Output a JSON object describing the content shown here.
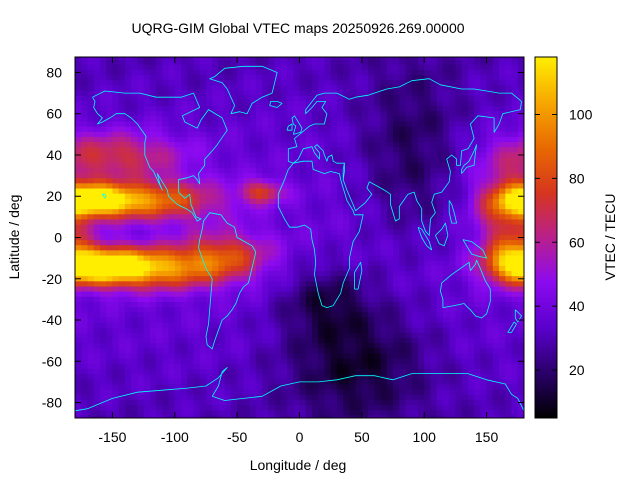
{
  "chart_data": {
    "type": "heatmap",
    "title": "UQRG-GIM Global VTEC maps 20250926.269.00000",
    "xlabel": "Longitude / deg",
    "ylabel": "Latitude / deg",
    "colorbar_label": "VTEC / TECU",
    "xlim": [
      -180,
      180
    ],
    "ylim": [
      -87.5,
      87.5
    ],
    "x_ticks": [
      -150,
      -100,
      -50,
      0,
      50,
      100,
      150
    ],
    "y_ticks": [
      -80,
      -60,
      -40,
      -20,
      0,
      20,
      40,
      60,
      80
    ],
    "colorbar_range": [
      5,
      118
    ],
    "colorbar_ticks": [
      20,
      40,
      60,
      80,
      100
    ],
    "colormap": [
      "#000000",
      "#2a006a",
      "#5a00cc",
      "#8c0af0",
      "#b9208c",
      "#d6361e",
      "#e86a00",
      "#f7a800",
      "#ffee00"
    ],
    "coastline_color": "#00ffff",
    "grid_resolution_deg": [
      5,
      2.5
    ],
    "field_features": [
      {
        "lon": -165,
        "lat": 18,
        "value": 115,
        "sx": 22,
        "sy": 5
      },
      {
        "lon": -160,
        "lat": -14,
        "value": 115,
        "sx": 28,
        "sy": 6
      },
      {
        "lon": -115,
        "lat": 18,
        "value": 80,
        "sx": 35,
        "sy": 7
      },
      {
        "lon": -110,
        "lat": -15,
        "value": 82,
        "sx": 38,
        "sy": 7
      },
      {
        "lon": -60,
        "lat": -8,
        "value": 65,
        "sx": 25,
        "sy": 8
      },
      {
        "lon": -30,
        "lat": 22,
        "value": 68,
        "sx": 12,
        "sy": 4
      },
      {
        "lon": -150,
        "lat": 40,
        "value": 65,
        "sx": 40,
        "sy": 8
      },
      {
        "lon": 168,
        "lat": 15,
        "value": 72,
        "sx": 18,
        "sy": 12
      },
      {
        "lon": 170,
        "lat": -10,
        "value": 72,
        "sx": 16,
        "sy": 8
      },
      {
        "lon": 45,
        "lat": -60,
        "value": 7,
        "sx": 40,
        "sy": 20
      },
      {
        "lon": 20,
        "lat": -30,
        "value": 12,
        "sx": 25,
        "sy": 12
      },
      {
        "lon": 90,
        "lat": 40,
        "value": 12,
        "sx": 30,
        "sy": 30
      }
    ],
    "background_value": 30
  }
}
